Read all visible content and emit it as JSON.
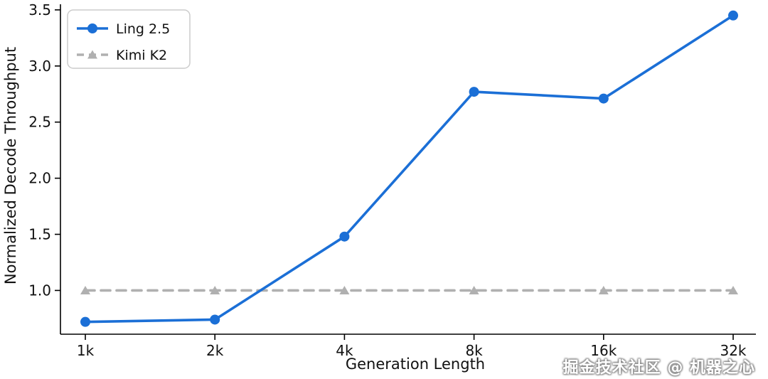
{
  "figure": {
    "background": "#ffffff",
    "spine_color": "#000000",
    "tick_color": "#000000"
  },
  "chart_data": {
    "type": "line",
    "title": "",
    "xlabel": "Generation Length",
    "ylabel": "Normalized Decode Throughput",
    "categories": [
      "1k",
      "2k",
      "4k",
      "8k",
      "16k",
      "32k"
    ],
    "series": [
      {
        "name": "Ling 2.5",
        "values": [
          0.72,
          0.74,
          1.48,
          2.77,
          2.71,
          3.45
        ],
        "color": "#1b6fd6",
        "style": "solid",
        "marker": "circle"
      },
      {
        "name": "Kimi K2",
        "values": [
          1.0,
          1.0,
          1.0,
          1.0,
          1.0,
          1.0
        ],
        "color": "#b0b0b0",
        "style": "dashed",
        "marker": "triangle"
      }
    ],
    "yticks": [
      1.0,
      1.5,
      2.0,
      2.5,
      3.0,
      3.5
    ],
    "ylim": [
      0.61,
      3.55
    ],
    "legend_position": "upper left",
    "grid": false
  },
  "watermark": {
    "text": "掘金技术社区 @ 机器之心"
  }
}
